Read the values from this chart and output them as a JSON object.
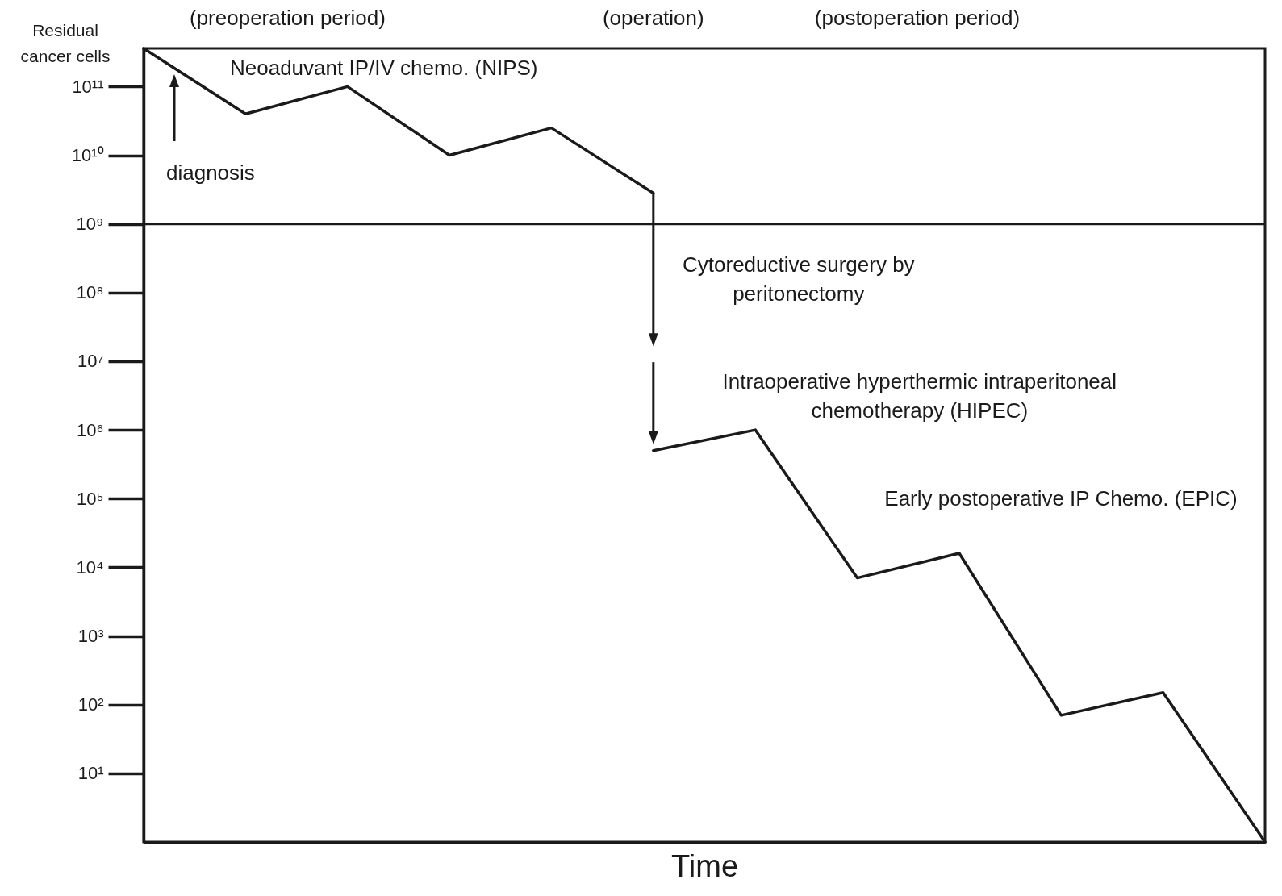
{
  "chart_data": {
    "type": "line",
    "xlabel": "Time",
    "ylabel": "Residual cancer cells",
    "categories": [
      null,
      null,
      null,
      null,
      null,
      null,
      null,
      null,
      null,
      null,
      null,
      null
    ],
    "series": [
      {
        "color": "#1a1a1a",
        "values": [
          360000000000,
          40000000000,
          100000000000,
          10000000000,
          25000000000,
          2800000000,
          null,
          null,
          null,
          null,
          null,
          null
        ]
      },
      {
        "color": "#1a1a1a",
        "values": [
          null,
          null,
          null,
          null,
          null,
          500000,
          1000000,
          7000,
          16000,
          70,
          150,
          1
        ]
      }
    ],
    "log": true,
    "ylim": [
      1,
      360000000000
    ],
    "yticks": [
      {
        "value": 10,
        "label": "10¹"
      },
      {
        "value": 100,
        "label": "10²"
      },
      {
        "value": 1000,
        "label": "10³"
      },
      {
        "value": 10000,
        "label": "10⁴"
      },
      {
        "value": 100000,
        "label": "10⁵"
      },
      {
        "value": 1000000,
        "label": "10⁶"
      },
      {
        "value": 10000000,
        "label": "10⁷"
      },
      {
        "value": 100000000,
        "label": "10⁸"
      },
      {
        "value": 1000000000,
        "label": "10⁹"
      },
      {
        "value": 10000000000,
        "label": "10¹⁰"
      },
      {
        "value": 100000000000,
        "label": "10¹¹"
      }
    ],
    "ref_lines": [
      {
        "axis": "y",
        "value": 1000000000,
        "color": "#1a1a1a"
      }
    ],
    "annotations": [
      "(preoperation period)",
      "(operation)",
      "(postoperation period)",
      "Neoaduvant IP/IV chemo. (NIPS)",
      "diagnosis",
      "Cytoreductive surgery by peritonectomy",
      "Intraoperative hyperthermic intraperitoneal chemotherapy (HIPEC)",
      "Early postoperative IP Chemo. (EPIC)"
    ],
    "grid": false,
    "legend": false,
    "tick_labels": "y",
    "line_style": "solid"
  }
}
